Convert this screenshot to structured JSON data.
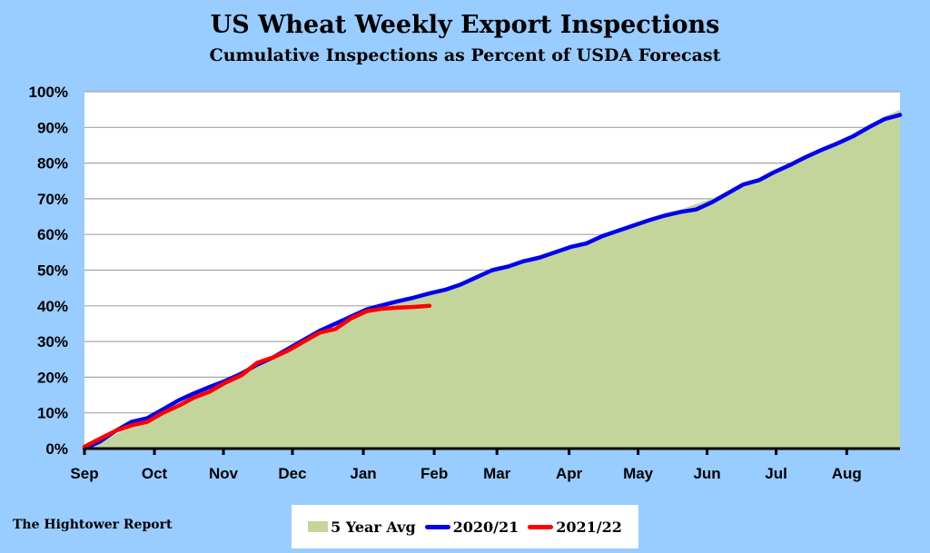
{
  "chart_data": {
    "type": "line",
    "title": "US Wheat Weekly Export Inspections",
    "subtitle": "Cumulative Inspections as Percent of USDA Forecast",
    "xlabel": "",
    "ylabel": "",
    "x_unit": "week of marketing year (Sep start)",
    "xlim": [
      0,
      52
    ],
    "ylim": [
      0,
      100
    ],
    "y_ticks": [
      0,
      10,
      20,
      30,
      40,
      50,
      60,
      70,
      80,
      90,
      100
    ],
    "y_tick_labels": [
      "0%",
      "10%",
      "20%",
      "30%",
      "40%",
      "50%",
      "60%",
      "70%",
      "80%",
      "90%",
      "100%"
    ],
    "month_ticks": [
      {
        "label": "Sep",
        "week": 0
      },
      {
        "label": "Oct",
        "week": 4.46
      },
      {
        "label": "Nov",
        "week": 8.86
      },
      {
        "label": "Dec",
        "week": 13.26
      },
      {
        "label": "Jan",
        "week": 17.78
      },
      {
        "label": "Feb",
        "week": 22.3
      },
      {
        "label": "Mar",
        "week": 26.3
      },
      {
        "label": "Apr",
        "week": 30.9
      },
      {
        "label": "May",
        "week": 35.3
      },
      {
        "label": "Jun",
        "week": 39.7
      },
      {
        "label": "Jul",
        "week": 44.1
      },
      {
        "label": "Aug",
        "week": 48.6
      }
    ],
    "grid": true,
    "legend_position": "bottom",
    "series": [
      {
        "name": "5 Year Avg",
        "type": "area",
        "color": "#c4d59b",
        "values": [
          0,
          1.5,
          4,
          6,
          7.5,
          10,
          12.5,
          14.5,
          16.5,
          18.5,
          20.5,
          23,
          25,
          27.5,
          30,
          32,
          34,
          36,
          38,
          39.5,
          41,
          42,
          43.5,
          44.5,
          46,
          47.5,
          49.5,
          51,
          52.5,
          53.5,
          55,
          56.5,
          57.5,
          59.5,
          61,
          62.5,
          64,
          65.5,
          67,
          68.5,
          70,
          72,
          74,
          75.5,
          77.5,
          79.5,
          82,
          84,
          86,
          88,
          90.5,
          93,
          95
        ]
      },
      {
        "name": "2020/21",
        "type": "line",
        "color": "#0000ee",
        "values": [
          0,
          2,
          5,
          7.5,
          8.5,
          11,
          13.5,
          15.5,
          17.3,
          19,
          21,
          23.5,
          25.5,
          28,
          30.5,
          33,
          35,
          37,
          39,
          40.2,
          41.3,
          42.3,
          43.5,
          44.5,
          46,
          48,
          50,
          51,
          52.5,
          53.5,
          55,
          56.5,
          57.5,
          59.5,
          61,
          62.5,
          64,
          65.3,
          66.3,
          67,
          69,
          71.5,
          74,
          75.2,
          77.5,
          79.5,
          81.7,
          83.7,
          85.5,
          87.5,
          90,
          92.3,
          93.5
        ]
      },
      {
        "name": "2021/22",
        "type": "line",
        "color": "#ff0000",
        "values": [
          0.5,
          2.8,
          5,
          6.5,
          7.5,
          10,
          12,
          14.3,
          16,
          18.5,
          20.5,
          24,
          25.5,
          27.5,
          30,
          32.5,
          33.5,
          36.5,
          38.5,
          39.2,
          39.5,
          39.7,
          40
        ]
      }
    ]
  },
  "footer": "The Hightower Report"
}
